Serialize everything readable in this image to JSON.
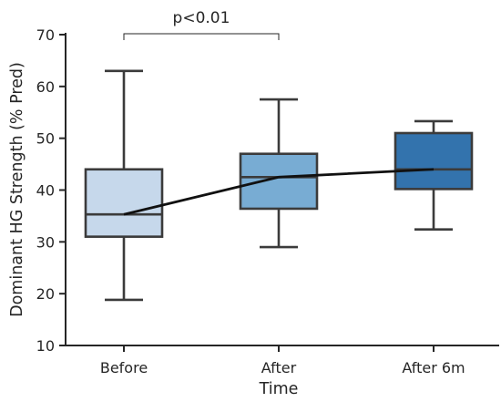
{
  "chart_data": {
    "type": "box",
    "title": "",
    "xlabel": "Time",
    "ylabel": "Dominant HG Strength (% Pred)",
    "ylim": [
      10,
      70
    ],
    "yticks": [
      10,
      20,
      30,
      40,
      50,
      60,
      70
    ],
    "categories": [
      "Before",
      "After",
      "After 6m"
    ],
    "boxes": [
      {
        "category": "Before",
        "min": 18.8,
        "q1": 31.0,
        "median": 35.3,
        "q3": 44.0,
        "max": 63.0,
        "color": "#c6d8eb"
      },
      {
        "category": "After",
        "min": 29.0,
        "q1": 36.4,
        "median": 42.5,
        "q3": 47.0,
        "max": 57.5,
        "color": "#78acd3"
      },
      {
        "category": "After 6m",
        "min": 32.4,
        "q1": 40.2,
        "median": 44.0,
        "q3": 51.0,
        "max": 53.3,
        "color": "#3373ad"
      }
    ],
    "trend_line": [
      35.3,
      42.5,
      44.0
    ],
    "annotations": [
      {
        "type": "significance",
        "from": "Before",
        "to": "After",
        "label": "p<0.01"
      }
    ],
    "grid": false,
    "legend": "none"
  }
}
